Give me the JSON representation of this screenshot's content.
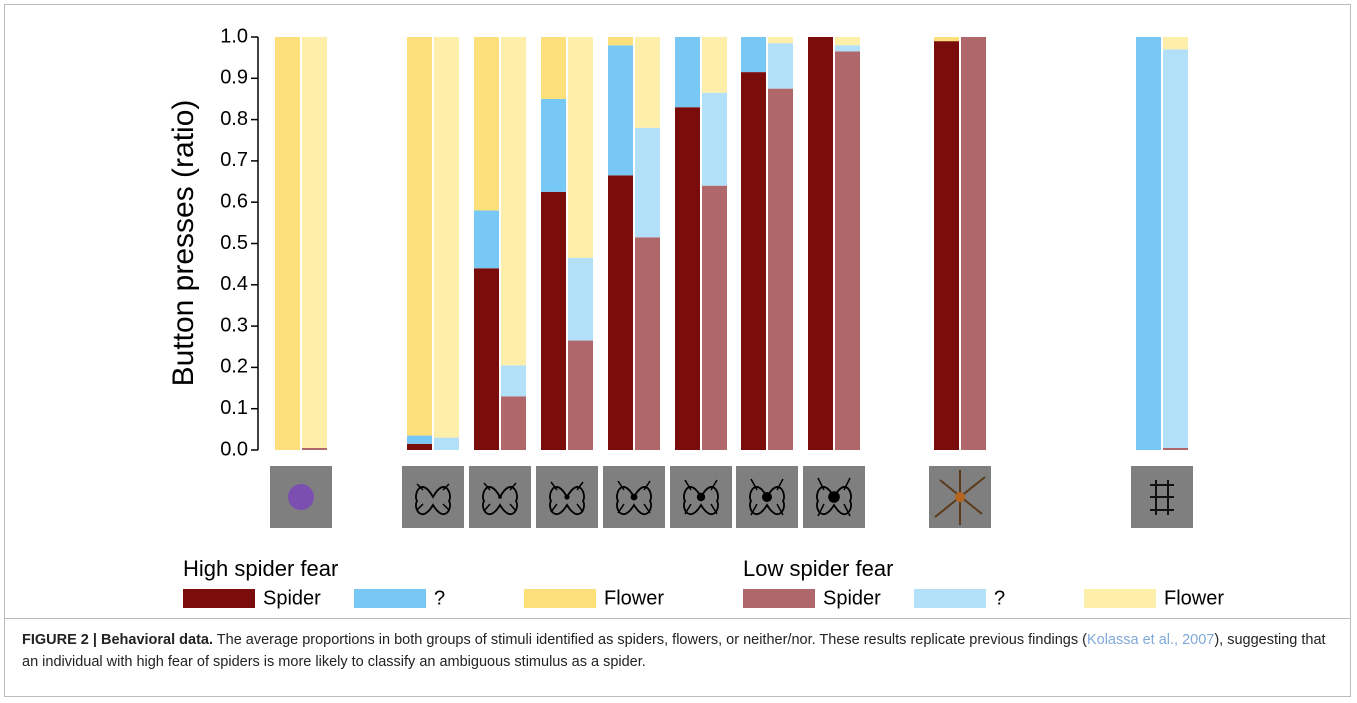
{
  "chart_data": {
    "type": "bar",
    "stacked": true,
    "ylabel": "Button presses (ratio)",
    "categories": [
      null,
      null,
      null,
      null,
      null,
      null,
      null,
      null,
      null,
      null
    ],
    "ylim": [
      0,
      1
    ],
    "yticks": [
      {
        "value": 0,
        "label": "0.0"
      },
      0.1,
      0.2,
      0.3,
      0.4,
      0.5,
      0.6,
      0.7,
      0.8,
      0.9,
      {
        "value": 1,
        "label": "1.0"
      }
    ],
    "groups": [
      {
        "name": "High spider fear",
        "series": [
          {
            "name": "Spider",
            "color": "#7b0c0c",
            "values": [
              0,
              0.015,
              0.44,
              0.625,
              0.665,
              0.83,
              0.915,
              1.0,
              0.99,
              0
            ]
          },
          {
            "name": "?",
            "color": "#78c8f5",
            "values": [
              0,
              0.02,
              0.14,
              0.225,
              0.315,
              0.17,
              0.085,
              0,
              0,
              1.0
            ]
          },
          {
            "name": "Flower",
            "color": "#fde07a",
            "values": [
              1.0,
              0.965,
              0.42,
              0.15,
              0.02,
              0,
              0,
              0,
              0.01,
              0
            ]
          }
        ]
      },
      {
        "name": "Low spider fear",
        "series": [
          {
            "name": "Spider",
            "color": "#b0676a",
            "values": [
              0.005,
              0,
              0.13,
              0.265,
              0.515,
              0.64,
              0.875,
              0.965,
              1.0,
              0.005
            ]
          },
          {
            "name": "?",
            "color": "#b3e0f9",
            "values": [
              0,
              0.03,
              0.075,
              0.2,
              0.265,
              0.225,
              0.11,
              0.015,
              0,
              0.965
            ]
          },
          {
            "name": "Flower",
            "color": "#fdeeaa",
            "values": [
              0.995,
              0.97,
              0.795,
              0.535,
              0.22,
              0.135,
              0.015,
              0.02,
              0,
              0.03
            ]
          }
        ]
      }
    ]
  },
  "caption": {
    "label": "FIGURE 2 | Behavioral data.",
    "before": "The average proportions in both groups of stimuli identified as spiders, flowers, or neither/nor. These results replicate previous findings (",
    "citation": "Kolassa et al., 2007",
    "after": "), suggesting that an individual with high fear of spiders is more likely to classify an ambiguous stimulus as a spider."
  }
}
